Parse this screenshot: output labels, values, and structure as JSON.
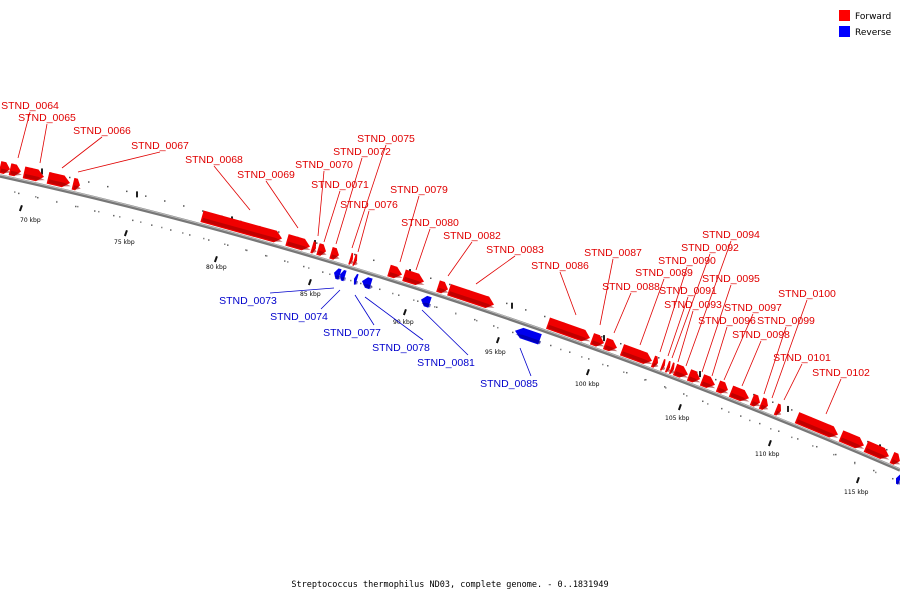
{
  "legend": {
    "forward": {
      "label": "Forward",
      "color": "#ff0000"
    },
    "reverse": {
      "label": "Reverse",
      "color": "#0000ff"
    }
  },
  "caption": "Streptococcus thermophilus ND03, complete genome. - 0..1831949",
  "scale_labels": [
    "70 kbp",
    "75 kbp",
    "80 kbp",
    "85 kbp",
    "90 kbp",
    "95 kbp",
    "100 kbp",
    "105 kbp",
    "110 kbp",
    "115 kbp"
  ],
  "forward_genes": [
    "STND_0064",
    "STND_0065",
    "STND_0066",
    "STND_0067",
    "STND_0068",
    "STND_0069",
    "STND_0070",
    "STND_0071",
    "STND_0072",
    "STND_0075",
    "STND_0076",
    "STND_0079",
    "STND_0080",
    "STND_0082",
    "STND_0083",
    "STND_0086",
    "STND_0087",
    "STND_0088",
    "STND_0089",
    "STND_0090",
    "STND_0091",
    "STND_0092",
    "STND_0093",
    "STND_0094",
    "STND_0095",
    "STND_0096",
    "STND_0097",
    "STND_0098",
    "STND_0099",
    "STND_0100",
    "STND_0101",
    "STND_0102"
  ],
  "reverse_genes": [
    "STND_0073",
    "STND_0074",
    "STND_0077",
    "STND_0078",
    "STND_0081",
    "STND_0085"
  ]
}
